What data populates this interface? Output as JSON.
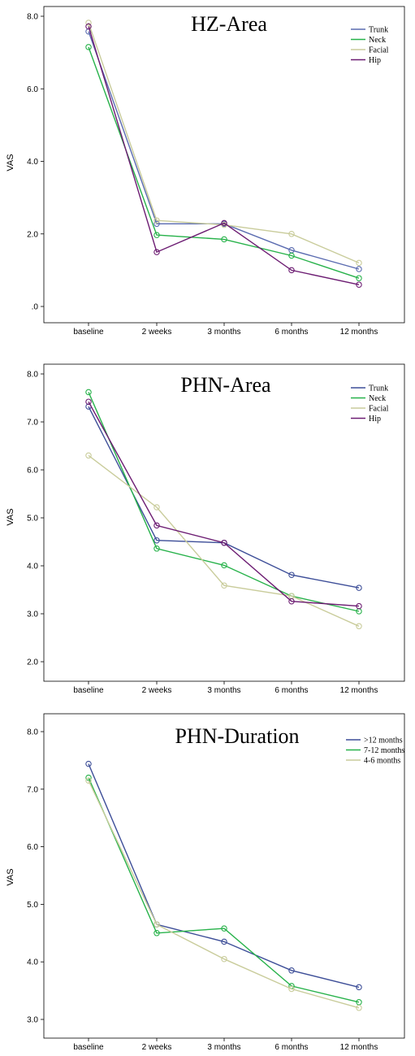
{
  "chart_data": [
    {
      "type": "line",
      "title": "HZ-Area",
      "ylabel": "VAS",
      "xlabel": "",
      "categories": [
        "baseline",
        "2 weeks",
        "3 months",
        "6 months",
        "12 months"
      ],
      "ylim": [
        0,
        8.3
      ],
      "yticks": [
        ".0",
        "2.0",
        "4.0",
        "6.0",
        "8.0"
      ],
      "ytick_values": [
        0,
        2,
        4,
        6,
        8
      ],
      "legend_position": "top-right",
      "grid": false,
      "series": [
        {
          "name": "Trunk",
          "color": "#5a6bb0",
          "values": [
            7.58,
            2.28,
            2.28,
            1.55,
            1.03
          ]
        },
        {
          "name": "Neck",
          "color": "#27b24a",
          "values": [
            7.15,
            1.97,
            1.85,
            1.4,
            0.78
          ]
        },
        {
          "name": "Facial",
          "color": "#c9cc9b",
          "values": [
            7.82,
            2.37,
            2.25,
            2.0,
            1.2
          ]
        },
        {
          "name": "Hip",
          "color": "#6c1c72",
          "values": [
            7.72,
            1.5,
            2.3,
            1.0,
            0.6
          ]
        }
      ]
    },
    {
      "type": "line",
      "title": "PHN-Area",
      "ylabel": "VAS",
      "xlabel": "",
      "categories": [
        "baseline",
        "2 weeks",
        "3 months",
        "6 months",
        "12 months"
      ],
      "ylim": [
        1.8,
        8.2
      ],
      "yticks": [
        "2.0",
        "3.0",
        "4.0",
        "5.0",
        "6.0",
        "7.0",
        "8.0"
      ],
      "ytick_values": [
        2,
        3,
        4,
        5,
        6,
        7,
        8
      ],
      "legend_position": "top-right",
      "grid": false,
      "series": [
        {
          "name": "Trunk",
          "color": "#3d4e98",
          "values": [
            7.32,
            4.53,
            4.48,
            3.81,
            3.54
          ]
        },
        {
          "name": "Neck",
          "color": "#27b24a",
          "values": [
            7.62,
            4.36,
            4.01,
            3.37,
            3.05
          ]
        },
        {
          "name": "Facial",
          "color": "#c9cc9b",
          "values": [
            6.3,
            5.22,
            3.59,
            3.37,
            2.74
          ]
        },
        {
          "name": "Hip",
          "color": "#6c1c72",
          "values": [
            7.42,
            4.84,
            4.48,
            3.26,
            3.16
          ]
        }
      ]
    },
    {
      "type": "line",
      "title": "PHN-Duration",
      "ylabel": "VAS",
      "xlabel": "",
      "categories": [
        "baseline",
        "2 weeks",
        "3 months",
        "6 months",
        "12 months"
      ],
      "ylim": [
        2.85,
        8.25
      ],
      "yticks": [
        "3.0",
        "4.0",
        "5.0",
        "6.0",
        "7.0",
        "8.0"
      ],
      "ytick_values": [
        3,
        4,
        5,
        6,
        7,
        8
      ],
      "legend_position": "top-right",
      "grid": false,
      "series": [
        {
          "name": ">12 months",
          "color": "#3d4e98",
          "values": [
            7.44,
            4.65,
            4.35,
            3.85,
            3.56
          ]
        },
        {
          "name": "7-12 months",
          "color": "#27b24a",
          "values": [
            7.2,
            4.5,
            4.58,
            3.58,
            3.3
          ]
        },
        {
          "name": "4-6 months",
          "color": "#c9cc9b",
          "values": [
            7.15,
            4.65,
            4.05,
            3.53,
            3.2
          ]
        }
      ]
    }
  ]
}
